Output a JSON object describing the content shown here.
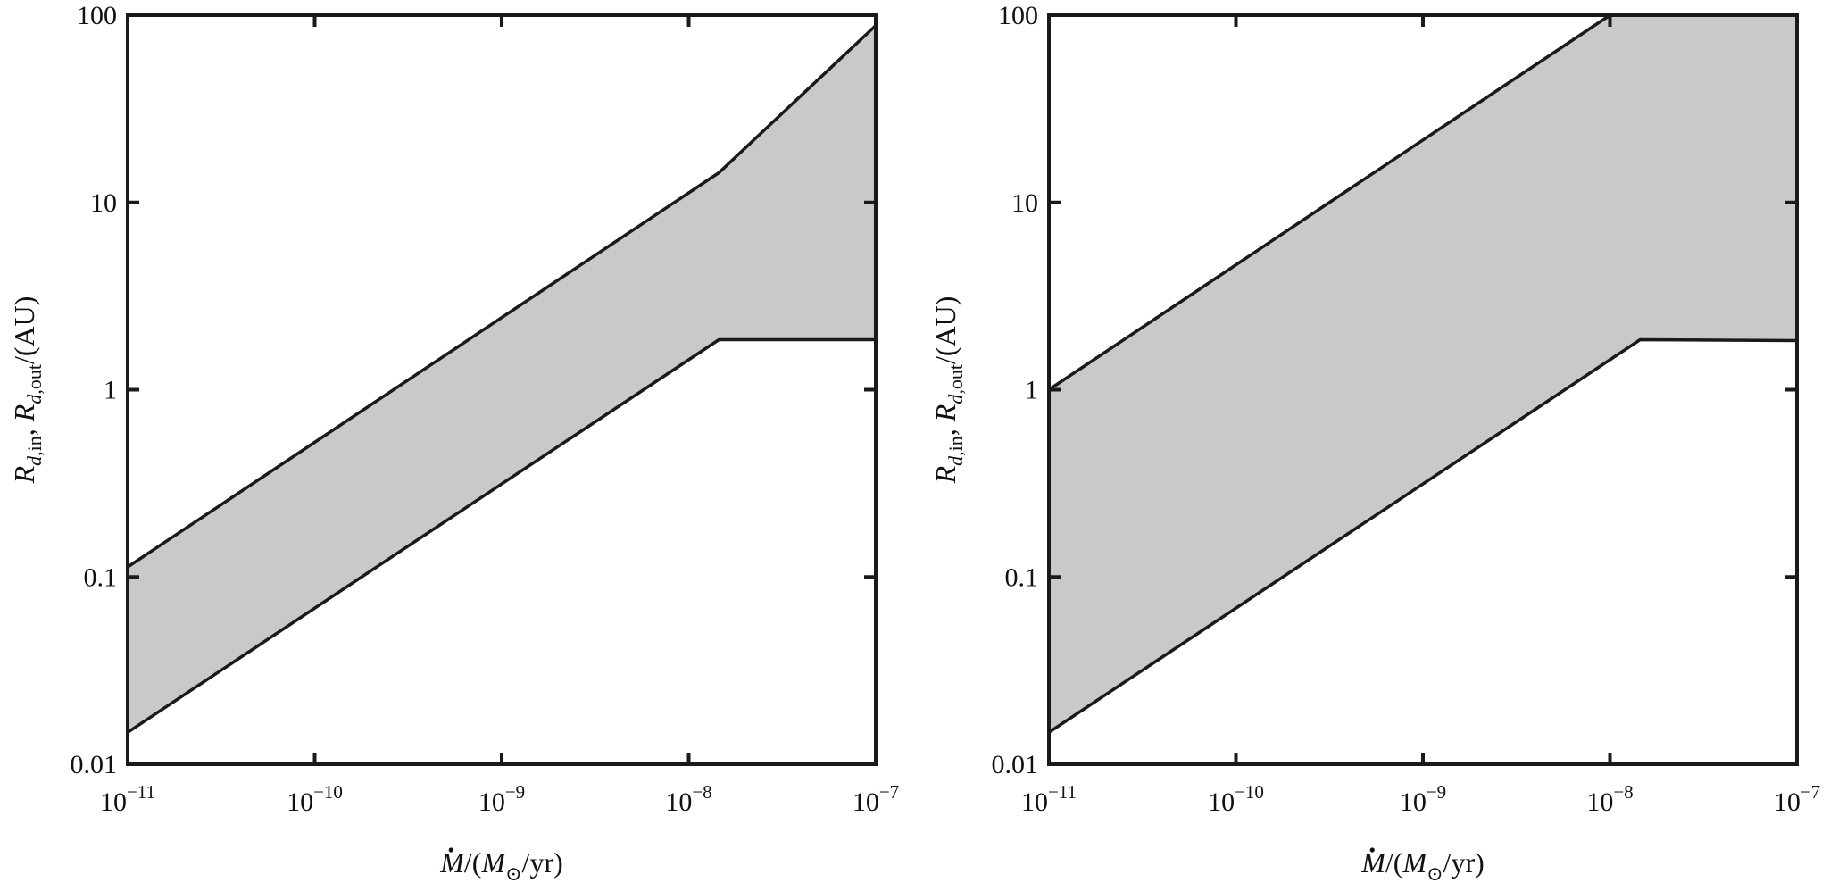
{
  "chart_data": [
    {
      "type": "area",
      "xscale": "log",
      "yscale": "log",
      "xlim": [
        1e-11,
        1e-07
      ],
      "ylim": [
        0.01,
        100
      ],
      "x_ticks": [
        {
          "value": 1e-11,
          "base": "10",
          "exp": "−11"
        },
        {
          "value": 1e-10,
          "base": "10",
          "exp": "−10"
        },
        {
          "value": 1e-09,
          "base": "10",
          "exp": "−9"
        },
        {
          "value": 1e-08,
          "base": "10",
          "exp": "−8"
        },
        {
          "value": 1e-07,
          "base": "10",
          "exp": "−7"
        }
      ],
      "y_ticks": [
        {
          "value": 0.01,
          "label": "0.01"
        },
        {
          "value": 0.1,
          "label": "0.1"
        },
        {
          "value": 1,
          "label": "1"
        },
        {
          "value": 10,
          "label": "10"
        },
        {
          "value": 100,
          "label": "100"
        }
      ],
      "grid": false,
      "series": [
        {
          "x": [
            1e-11,
            1.45e-08,
            1e-07
          ],
          "y": [
            0.0148,
            1.85,
            1.85
          ]
        },
        {
          "x": [
            1e-11,
            1.45e-08,
            1e-07
          ],
          "y": [
            0.113,
            14.4,
            88
          ]
        }
      ]
    },
    {
      "type": "area",
      "xscale": "log",
      "yscale": "log",
      "xlim": [
        1e-11,
        1e-07
      ],
      "ylim": [
        0.01,
        100
      ],
      "x_ticks": [
        {
          "value": 1e-11,
          "base": "10",
          "exp": "−11"
        },
        {
          "value": 1e-10,
          "base": "10",
          "exp": "−10"
        },
        {
          "value": 1e-09,
          "base": "10",
          "exp": "−9"
        },
        {
          "value": 1e-08,
          "base": "10",
          "exp": "−8"
        },
        {
          "value": 1e-07,
          "base": "10",
          "exp": "−7"
        }
      ],
      "y_ticks": [
        {
          "value": 0.01,
          "label": "0.01"
        },
        {
          "value": 0.1,
          "label": "0.1"
        },
        {
          "value": 1,
          "label": "1"
        },
        {
          "value": 10,
          "label": "10"
        },
        {
          "value": 100,
          "label": "100"
        }
      ],
      "grid": false,
      "series": [
        {
          "x": [
            1e-11,
            1.45e-08,
            1e-07
          ],
          "y": [
            0.0148,
            1.85,
            1.83
          ]
        },
        {
          "x": [
            1e-11,
            1e-08,
            1e-07
          ],
          "y": [
            1.0,
            100,
            100
          ]
        }
      ]
    }
  ],
  "axis_text": {
    "xlabel": {
      "mdot": "M",
      "sep": "/(",
      "msun": "M",
      "sun_sub": "⊙",
      "tail": "/yr)"
    },
    "ylabel": {
      "r1": "R",
      "r1_sub": "d",
      "r1_sub2": ",in",
      "comma": ", ",
      "r2": "R",
      "r2_sub": "d",
      "r2_sub2": ",out",
      "tail": "/(AU)"
    }
  }
}
